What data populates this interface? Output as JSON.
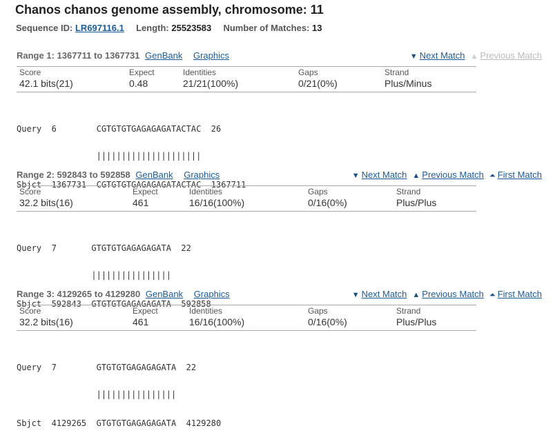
{
  "page": {
    "title": "Chanos chanos genome assembly, chromosome: 11",
    "sequence_id_label": "Sequence ID:",
    "sequence_id": "LR697116.1",
    "length_label": "Length:",
    "length": "25523583",
    "matches_label": "Number of Matches:",
    "matches": "13"
  },
  "labels": {
    "genbank": "GenBank",
    "graphics": "Graphics",
    "next_match": "Next Match",
    "previous_match": "Previous Match",
    "first_match": "First Match",
    "score": "Score",
    "expect": "Expect",
    "identities": "Identities",
    "gaps": "Gaps",
    "strand": "Strand"
  },
  "ranges": [
    {
      "title": "Range 1: 1367711 to 1367731",
      "score": "42.1 bits(21)",
      "expect": "0.48",
      "identities": "21/21(100%)",
      "gaps": "0/21(0%)",
      "strand": "Plus/Minus",
      "query_line": "Query  6        CGTGTGTGAGAGAGATACTAC  26",
      "match_line": "                |||||||||||||||||||||",
      "sbjct_line": "Sbjct  1367731  CGTGTGTGAGAGAGATACTAC  1367711"
    },
    {
      "title": "Range 2: 592843 to 592858",
      "score": "32.2 bits(16)",
      "expect": "461",
      "identities": "16/16(100%)",
      "gaps": "0/16(0%)",
      "strand": "Plus/Plus",
      "query_line": "Query  7       GTGTGTGAGAGAGATA  22",
      "match_line": "               ||||||||||||||||",
      "sbjct_line": "Sbjct  592843  GTGTGTGAGAGAGATA  592858"
    },
    {
      "title": "Range 3: 4129265 to 4129280",
      "score": "32.2 bits(16)",
      "expect": "461",
      "identities": "16/16(100%)",
      "gaps": "0/16(0%)",
      "strand": "Plus/Plus",
      "query_line": "Query  7        GTGTGTGAGAGAGATA  22",
      "match_line": "                ||||||||||||||||",
      "sbjct_line": "Sbjct  4129265  GTGTGTGAGAGAGATA  4129280"
    }
  ]
}
